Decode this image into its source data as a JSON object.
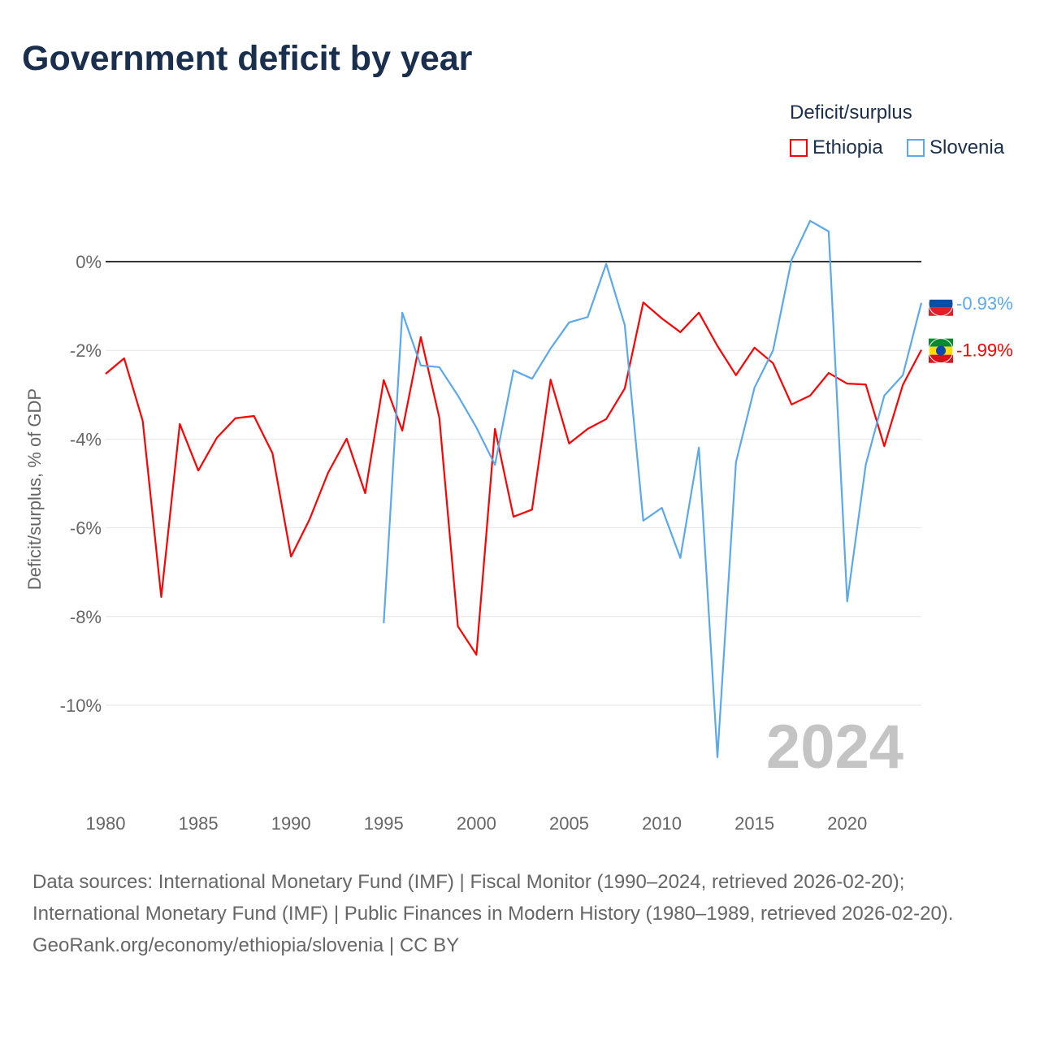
{
  "title": "Government deficit by year",
  "footer": {
    "sources": "Data sources: International Monetary Fund (IMF) | Fiscal Monitor (1990–2024, retrieved 2026-02-20); International Monetary Fund (IMF) | Public Finances in Modern History (1980–1989, retrieved 2026-02-20).",
    "credit": "GeoRank.org/economy/ethiopia/slovenia | CC BY"
  },
  "chart_data": {
    "type": "line",
    "title": "Government deficit by year",
    "xlabel": "",
    "ylabel": "Deficit/surplus, % of GDP",
    "legend_title": "Deficit/surplus",
    "legend_position": "top-right",
    "year_watermark": "2024",
    "xlim": [
      1980,
      2024
    ],
    "ylim": [
      -11.5,
      1.2
    ],
    "x_ticks": [
      "1980",
      "1985",
      "1990",
      "1995",
      "2000",
      "2005",
      "2010",
      "2015",
      "2020"
    ],
    "y_ticks": [
      {
        "v": 0,
        "label": "0%"
      },
      {
        "v": -2,
        "label": "-2%"
      },
      {
        "v": -4,
        "label": "-4%"
      },
      {
        "v": -6,
        "label": "-6%"
      },
      {
        "v": -8,
        "label": "-8%"
      },
      {
        "v": -10,
        "label": "-10%"
      }
    ],
    "series": [
      {
        "name": "Ethiopia",
        "color": "#ff0000",
        "end_label": "-1.99%",
        "start_year": 1980,
        "values": [
          -2.53,
          -2.18,
          -3.59,
          -7.56,
          -3.66,
          -4.71,
          -3.97,
          -3.53,
          -3.48,
          -4.32,
          -6.65,
          -5.81,
          -4.76,
          -3.99,
          -5.22,
          -2.67,
          -3.81,
          -1.7,
          -3.52,
          -8.22,
          -8.86,
          -3.77,
          -5.75,
          -5.59,
          -2.66,
          -4.1,
          -3.77,
          -3.55,
          -2.86,
          -0.92,
          -1.28,
          -1.59,
          -1.15,
          -1.9,
          -2.56,
          -1.94,
          -2.29,
          -3.22,
          -3.02,
          -2.51,
          -2.75,
          -2.77,
          -4.16,
          -2.78,
          -1.99
        ]
      },
      {
        "name": "Slovenia",
        "color": "#5ba8ec",
        "end_label": "-0.93%",
        "start_year": 1995,
        "values": [
          -8.15,
          -1.15,
          -2.34,
          -2.38,
          -3.02,
          -3.74,
          -4.58,
          -2.45,
          -2.64,
          -1.96,
          -1.37,
          -1.25,
          -0.05,
          -1.43,
          -5.84,
          -5.55,
          -6.68,
          -4.19,
          -11.17,
          -4.52,
          -2.84,
          -2.0,
          0.04,
          0.92,
          0.68,
          -7.66,
          -4.58,
          -3.02,
          -2.56,
          -0.93
        ]
      }
    ]
  }
}
